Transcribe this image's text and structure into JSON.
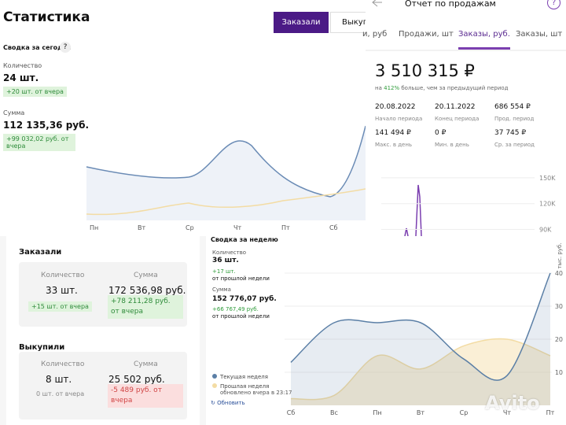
{
  "today": {
    "title": "Статистика",
    "tabs": [
      "Заказали",
      "Выкупи"
    ],
    "summary_title": "Сводка за сегодня",
    "help": "?",
    "count_label": "Количество",
    "count": "24 шт.",
    "count_delta": "+20 шт. от вчера",
    "sum_label": "Сумма",
    "sum": "112 135,36 руб.",
    "sum_delta": "+99 032,02 руб. от вчера",
    "days": [
      "Пн",
      "Вт",
      "Ср",
      "Чт",
      "Пт",
      "Сб"
    ]
  },
  "report": {
    "title": "Отчет по продажам",
    "help": "?",
    "tabs": [
      "и, руб",
      "Продажи, шт",
      "Заказы, руб.",
      "Заказы, шт"
    ],
    "total": "3 510 315 ₽",
    "growth_prefix": "на",
    "growth": "412%",
    "growth_text": "больше, чем за предыдущий период",
    "stats": [
      {
        "value": "20.08.2022",
        "label": "Начало периода"
      },
      {
        "value": "20.11.2022",
        "label": "Конец периода"
      },
      {
        "value": "686 554 ₽",
        "label": "Прод. период"
      },
      {
        "value": "141 494 ₽",
        "label": "Макс. в день"
      },
      {
        "value": "0 ₽",
        "label": "Мин. в день"
      },
      {
        "value": "37 745 ₽",
        "label": "Ср. за период"
      }
    ]
  },
  "orders": {
    "ordered_title": "Заказали",
    "ordered": {
      "count_label": "Количество",
      "sum_label": "Сумма",
      "count": "33 шт.",
      "sum": "172 536,98 руб.",
      "count_delta": "+15 шт. от вчера",
      "sum_delta": "+78 211,28 руб. от вчера"
    },
    "bought_title": "Выкупили",
    "bought": {
      "count_label": "Количество",
      "sum_label": "Сумма",
      "count": "8 шт.",
      "sum": "25 502 руб.",
      "count_delta": "0 шт. от вчера",
      "sum_delta": "-5 489 руб. от вчера"
    }
  },
  "week": {
    "title": "Сводка за неделю",
    "count_label": "Количество",
    "count": "36 шт.",
    "count_delta": "+17 шт.",
    "count_note": "от прошлой недели",
    "sum_label": "Сумма",
    "sum": "152 776,07 руб.",
    "sum_delta": "+66 767,49 руб.",
    "sum_note": "от прошлой недели",
    "updated": "обновлено вчера в 23:17",
    "refresh": "Обновить"
  },
  "watermark": "Avito",
  "chart_data": [
    {
      "type": "line",
      "y_label": "тыс. руб.",
      "categories": [
        "Сб",
        "Вс",
        "Пн",
        "Вт",
        "Ср",
        "Чт",
        "Пт"
      ],
      "series": [
        {
          "name": "Текущая неделя",
          "color": "#5b7fa6",
          "values": [
            13,
            25,
            25,
            25,
            14,
            9,
            40
          ]
        },
        {
          "name": "Прошлая неделя",
          "color": "#f3dca4",
          "values": [
            2,
            3,
            15,
            11,
            18,
            20,
            15
          ]
        }
      ],
      "ylim": [
        0,
        50
      ],
      "yticks": [
        10,
        20,
        30,
        40
      ],
      "grid": true
    },
    {
      "type": "line",
      "ylim": [
        85000,
        160000
      ],
      "yticks": [
        {
          "value": 150000,
          "label": "150K"
        },
        {
          "value": 120000,
          "label": "120K"
        },
        {
          "value": 90000,
          "label": "90K"
        }
      ],
      "grid": true
    }
  ]
}
